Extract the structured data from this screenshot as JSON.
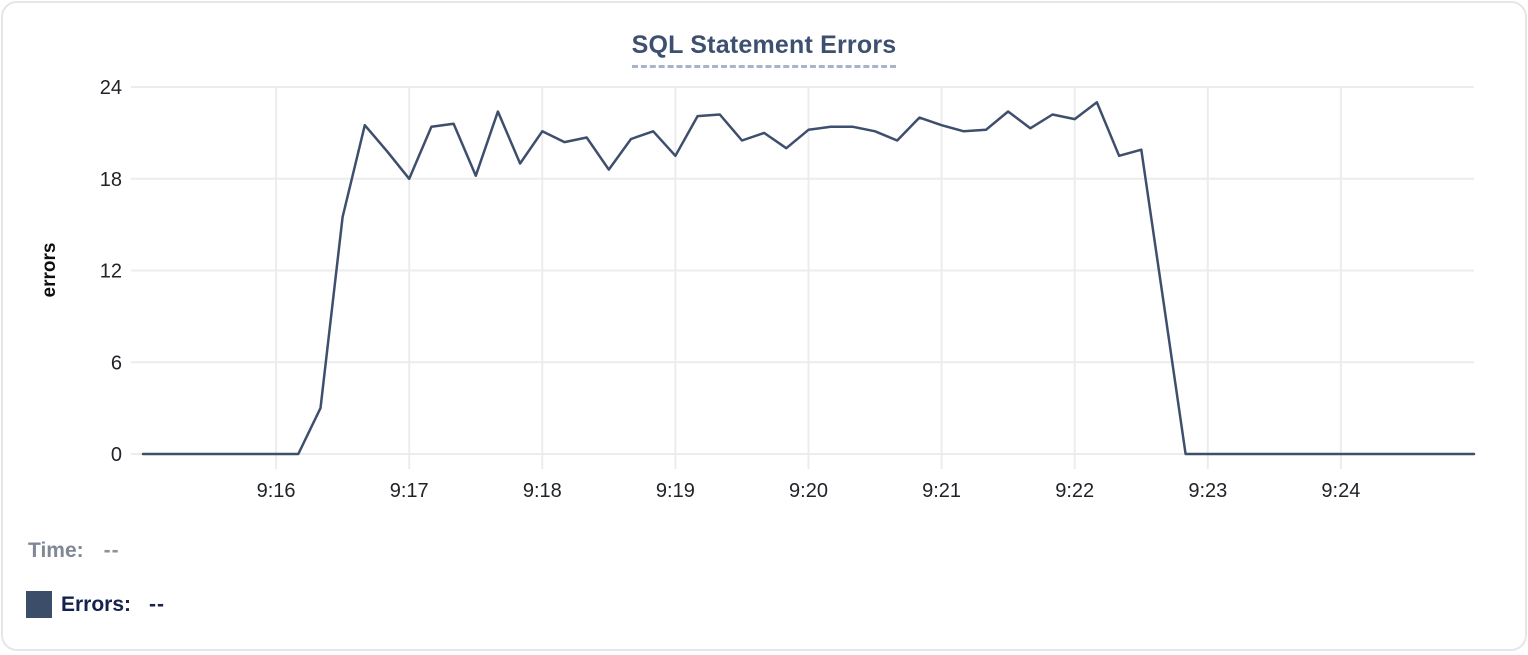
{
  "chart_data": {
    "type": "line",
    "title": "SQL Statement Errors",
    "xlabel": "",
    "ylabel": "errors",
    "ylim": [
      0,
      24
    ],
    "y_ticks": [
      0,
      6,
      12,
      18,
      24
    ],
    "x_ticks": [
      "9:16",
      "9:17",
      "9:18",
      "9:19",
      "9:20",
      "9:21",
      "9:22",
      "9:23",
      "9:24"
    ],
    "x_range": [
      "9:15:00",
      "9:25:00"
    ],
    "grid": true,
    "legend_position": "bottom-left",
    "series": [
      {
        "name": "Errors",
        "color": "#3e4e6d",
        "points": [
          [
            "9:15:00",
            0
          ],
          [
            "9:15:10",
            0
          ],
          [
            "9:15:20",
            0
          ],
          [
            "9:15:30",
            0
          ],
          [
            "9:15:40",
            0
          ],
          [
            "9:15:50",
            0
          ],
          [
            "9:16:00",
            0
          ],
          [
            "9:16:10",
            0
          ],
          [
            "9:16:20",
            3
          ],
          [
            "9:16:30",
            15.5
          ],
          [
            "9:16:40",
            21.5
          ],
          [
            "9:16:50",
            19.8
          ],
          [
            "9:17:00",
            18
          ],
          [
            "9:17:10",
            21.4
          ],
          [
            "9:17:20",
            21.6
          ],
          [
            "9:17:30",
            18.2
          ],
          [
            "9:17:40",
            22.4
          ],
          [
            "9:17:50",
            19
          ],
          [
            "9:18:00",
            21.1
          ],
          [
            "9:18:10",
            20.4
          ],
          [
            "9:18:20",
            20.7
          ],
          [
            "9:18:30",
            18.6
          ],
          [
            "9:18:40",
            20.6
          ],
          [
            "9:18:50",
            21.1
          ],
          [
            "9:19:00",
            19.5
          ],
          [
            "9:19:10",
            22.1
          ],
          [
            "9:19:20",
            22.2
          ],
          [
            "9:19:30",
            20.5
          ],
          [
            "9:19:40",
            21
          ],
          [
            "9:19:50",
            20
          ],
          [
            "9:20:00",
            21.2
          ],
          [
            "9:20:10",
            21.4
          ],
          [
            "9:20:20",
            21.4
          ],
          [
            "9:20:30",
            21.1
          ],
          [
            "9:20:40",
            20.5
          ],
          [
            "9:20:50",
            22
          ],
          [
            "9:21:00",
            21.5
          ],
          [
            "9:21:10",
            21.1
          ],
          [
            "9:21:20",
            21.2
          ],
          [
            "9:21:30",
            22.4
          ],
          [
            "9:21:40",
            21.3
          ],
          [
            "9:21:50",
            22.2
          ],
          [
            "9:22:00",
            21.9
          ],
          [
            "9:22:10",
            23
          ],
          [
            "9:22:20",
            19.5
          ],
          [
            "9:22:30",
            19.9
          ],
          [
            "9:22:40",
            10
          ],
          [
            "9:22:50",
            0
          ],
          [
            "9:23:00",
            0
          ],
          [
            "9:23:10",
            0
          ],
          [
            "9:23:20",
            0
          ],
          [
            "9:23:30",
            0
          ],
          [
            "9:23:40",
            0
          ],
          [
            "9:23:50",
            0
          ],
          [
            "9:24:00",
            0
          ],
          [
            "9:24:10",
            0
          ],
          [
            "9:24:20",
            0
          ],
          [
            "9:24:30",
            0
          ],
          [
            "9:24:40",
            0
          ],
          [
            "9:24:50",
            0
          ],
          [
            "9:25:00",
            0
          ]
        ]
      }
    ]
  },
  "readout": {
    "time_label": "Time:",
    "time_value": "--",
    "errors_label": "Errors:",
    "errors_value": "--"
  },
  "colors": {
    "line": "#3e4e6d",
    "title_text": "#3d5070",
    "title_underline": "#a9b4c9",
    "gridline": "#ececec",
    "axis_text": "#202327",
    "time_label_text": "#808896",
    "errors_label_text": "#14224d",
    "legend_swatch": "#3b4d69",
    "card_border": "#e4e6ea",
    "background": "#ffffff"
  }
}
